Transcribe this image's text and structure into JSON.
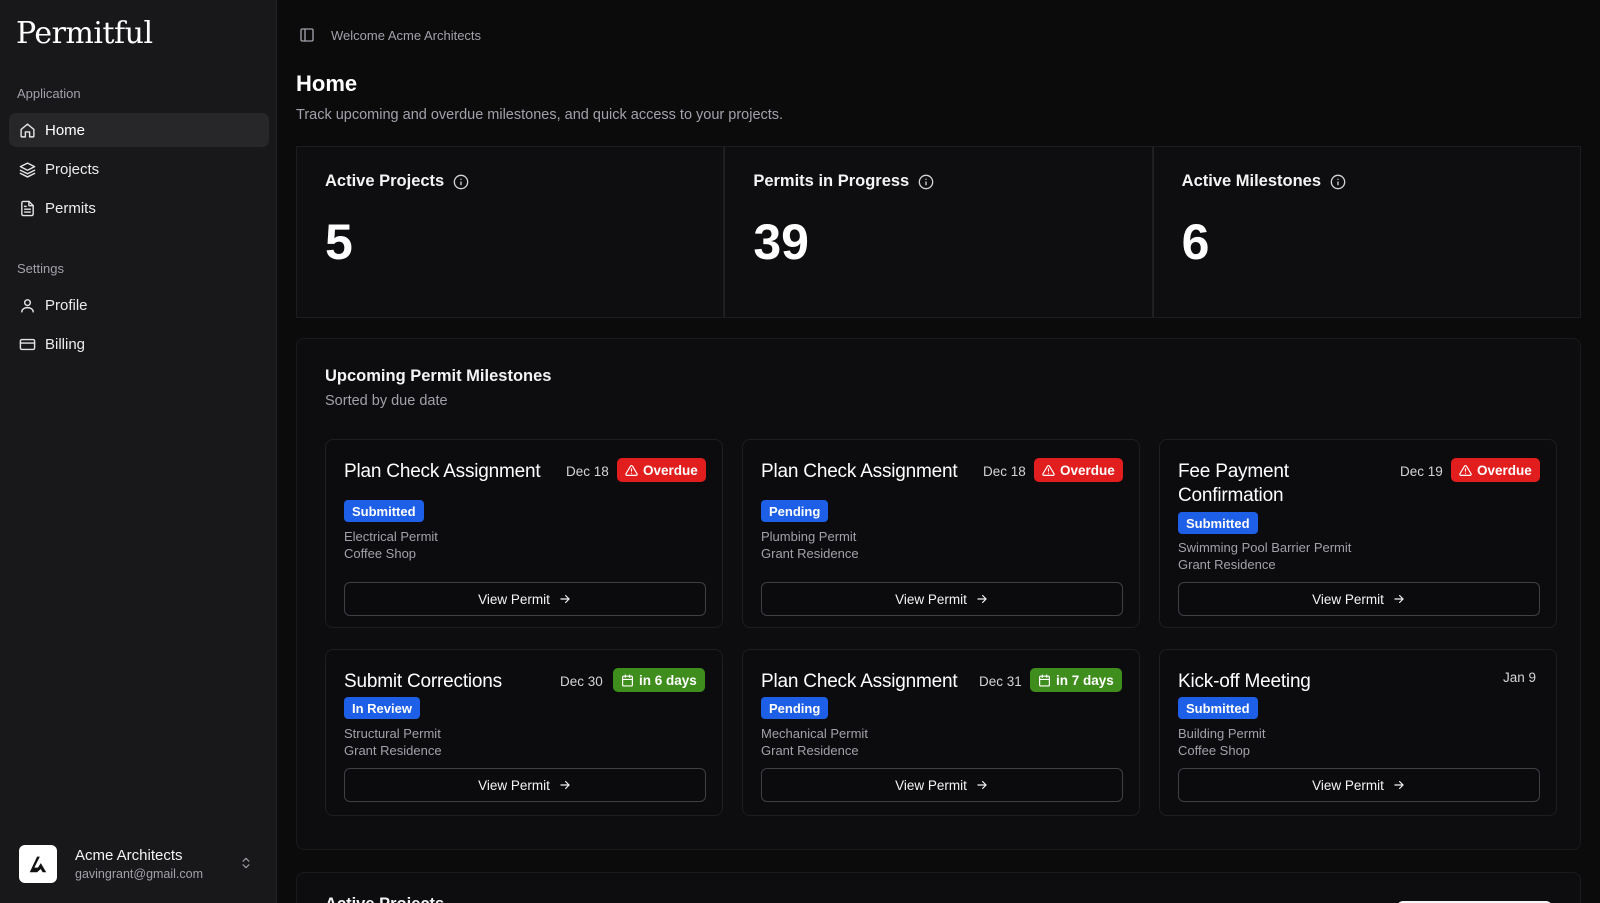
{
  "app": {
    "logo": "Permitful"
  },
  "sidebar": {
    "groups": [
      {
        "label": "Application"
      },
      {
        "label": "Settings"
      }
    ],
    "items": [
      {
        "label": "Home",
        "icon": "home-icon"
      },
      {
        "label": "Projects",
        "icon": "layers-icon"
      },
      {
        "label": "Permits",
        "icon": "file-text-icon"
      },
      {
        "label": "Profile",
        "icon": "user-icon"
      },
      {
        "label": "Billing",
        "icon": "credit-card-icon"
      }
    ],
    "account": {
      "name": "Acme Architects",
      "email": "gavingrant@gmail.com"
    }
  },
  "header": {
    "welcome": "Welcome Acme Architects"
  },
  "page": {
    "title": "Home",
    "subtitle": "Track upcoming and overdue milestones, and quick access to your projects."
  },
  "stats": [
    {
      "title": "Active Projects",
      "value": "5"
    },
    {
      "title": "Permits in Progress",
      "value": "39"
    },
    {
      "title": "Active Milestones",
      "value": "6"
    }
  ],
  "milestones": {
    "title": "Upcoming Permit Milestones",
    "subtitle": "Sorted by due date",
    "cards": [
      {
        "title": "Plan Check Assignment",
        "date": "Dec 18",
        "due": "Overdue",
        "due_type": "overdue",
        "status": "Submitted",
        "permit": "Electrical Permit",
        "project": "Coffee Shop",
        "action": "View Permit"
      },
      {
        "title": "Plan Check Assignment",
        "date": "Dec 18",
        "due": "Overdue",
        "due_type": "overdue",
        "status": "Pending",
        "permit": "Plumbing Permit",
        "project": "Grant Residence",
        "action": "View Permit"
      },
      {
        "title": "Fee Payment Confirmation",
        "date": "Dec 19",
        "due": "Overdue",
        "due_type": "overdue",
        "status": "Submitted",
        "permit": "Swimming Pool Barrier Permit",
        "project": "Grant Residence",
        "action": "View Permit"
      },
      {
        "title": "Submit Corrections",
        "date": "Dec 30",
        "due": "in 6 days",
        "due_type": "soon",
        "status": "In Review",
        "permit": "Structural Permit",
        "project": "Grant Residence",
        "action": "View Permit"
      },
      {
        "title": "Plan Check Assignment",
        "date": "Dec 31",
        "due": "in 7 days",
        "due_type": "soon",
        "status": "Pending",
        "permit": "Mechanical Permit",
        "project": "Grant Residence",
        "action": "View Permit"
      },
      {
        "title": "Kick-off Meeting",
        "date": "Jan 9",
        "due": "",
        "due_type": "none",
        "status": "Submitted",
        "permit": "Building Permit",
        "project": "Coffee Shop",
        "action": "View Permit"
      }
    ]
  },
  "active_projects": {
    "title": "Active Projects"
  },
  "colors": {
    "overdue": "#e11d1d",
    "soon": "#3f8d1d",
    "status": "#1d5fe6",
    "sidebar_bg": "#18181b",
    "page_bg": "#0b0b0c"
  }
}
